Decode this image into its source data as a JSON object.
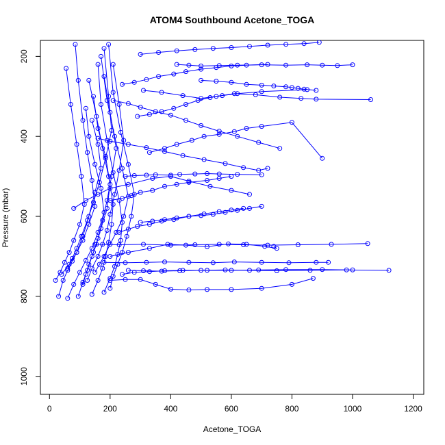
{
  "chart_data": {
    "type": "scatter",
    "title": "ATOM4 Southbound Acetone_TOGA",
    "xlabel": "Acetone_TOGA",
    "ylabel": "Pressure (mbar)",
    "xlim": [
      -30,
      1235
    ],
    "ylim": [
      1045,
      160
    ],
    "y_reversed": true,
    "x_ticks": [
      0,
      200,
      400,
      600,
      800,
      1000,
      1200
    ],
    "y_ticks": [
      200,
      400,
      600,
      800,
      1000
    ],
    "series_color": "#0000ff",
    "marker": "open-circle",
    "connected": true,
    "series": [
      {
        "profiles": [
          {
            "x": [
              30,
              45,
              60,
              75,
              90,
              110,
              130,
              150,
              170,
              160,
              140
            ],
            "y": [
              800,
              760,
              735,
              712,
              690,
              650,
              600,
              540,
              480,
              420,
              360
            ]
          },
          {
            "x": [
              60,
              80,
              100,
              120,
              140,
              160,
              180,
              170,
              150,
              130,
              120
            ],
            "y": [
              805,
              770,
              740,
              710,
              680,
              640,
              590,
              530,
              470,
              400,
              330
            ]
          },
          {
            "x": [
              95,
              110,
              125,
              140,
              155,
              170,
              190,
              200,
              185,
              160,
              145
            ],
            "y": [
              800,
              765,
              735,
              700,
              670,
              630,
              580,
              520,
              450,
              380,
              300
            ]
          },
          {
            "x": [
              140,
              160,
              175,
              185,
              195,
              205,
              210,
              195,
              175,
              155,
              130
            ],
            "y": [
              795,
              760,
              730,
              700,
              665,
              620,
              570,
              500,
              430,
              350,
              260
            ]
          },
          {
            "x": [
              180,
              200,
              215,
              225,
              235,
              240,
              230,
              210,
              190,
              170,
              160
            ],
            "y": [
              790,
              755,
              725,
              695,
              660,
              615,
              560,
              490,
              410,
              320,
              220
            ]
          },
          {
            "x": [
              20,
              35,
              50,
              65,
              80,
              100,
              115,
              105,
              90,
              70,
              55
            ],
            "y": [
              760,
              740,
              715,
              690,
              660,
              620,
              570,
              500,
              420,
              320,
              230
            ]
          },
          {
            "x": [
              110,
              120,
              130,
              145,
              160,
              175,
              190,
              205,
              220,
              200,
              180
            ],
            "y": [
              770,
              745,
              720,
              690,
              655,
              610,
              560,
              500,
              430,
              340,
              250
            ]
          },
          {
            "x": [
              150,
              165,
              180,
              200,
              220,
              245,
              260,
              240,
              215,
              190,
              170
            ],
            "y": [
              740,
              720,
              700,
              670,
              640,
              600,
              550,
              480,
              400,
              310,
              200
            ]
          },
          {
            "x": [
              60,
              75,
              90,
              105,
              125,
              145,
              165,
              185,
              205,
              195,
              180
            ],
            "y": [
              730,
              705,
              680,
              650,
              610,
              565,
              515,
              455,
              385,
              300,
              180
            ]
          },
          {
            "x": [
              200,
              210,
              225,
              240,
              255,
              270,
              280,
              260,
              235,
              210,
              195
            ],
            "y": [
              780,
              750,
              720,
              690,
              650,
              600,
              545,
              470,
              390,
              290,
              170
            ]
          },
          {
            "x": [
              40,
              65,
              90,
              110,
              130,
              150,
              140,
              125,
              110,
              95,
              85
            ],
            "y": [
              745,
              720,
              690,
              660,
              620,
              575,
              510,
              440,
              360,
              260,
              170
            ]
          },
          {
            "x": [
              125,
              140,
              160,
              175,
              190,
              200,
              215,
              230,
              245,
              230,
              210
            ],
            "y": [
              760,
              730,
              700,
              670,
              635,
              595,
              545,
              485,
              410,
              320,
              220
            ]
          },
          {
            "x": [
              240,
              280,
              330,
              380,
              440,
              520,
              600,
              690,
              780,
              900,
              1000
            ],
            "y": [
              745,
              740,
              738,
              736,
              735,
              735,
              735,
              734,
              733,
              733,
              734
            ]
          },
          {
            "x": [
              260,
              310,
              370,
              430,
              500,
              580,
              660,
              750,
              860,
              980,
              1120
            ],
            "y": [
              735,
              736,
              737,
              736,
              735,
              734,
              735,
              736,
              735,
              734,
              735
            ]
          },
          {
            "x": [
              150,
              230,
              310,
              400,
              480,
              560,
              640,
              720,
              820,
              930,
              1050
            ],
            "y": [
              670,
              671,
              670,
              672,
              671,
              670,
              671,
              672,
              671,
              670,
              668
            ]
          },
          {
            "x": [
              200,
              260,
              330,
              390,
              450,
              520,
              590,
              650,
              710,
              750,
              740
            ],
            "y": [
              700,
              690,
              680,
              670,
              672,
              676,
              669,
              670,
              675,
              680,
              675
            ]
          },
          {
            "x": [
              180,
              250,
              320,
              380,
              460,
              540,
              610,
              700,
              790,
              880,
              920
            ],
            "y": [
              715,
              716,
              715,
              714,
              715,
              716,
              714,
              715,
              716,
              715,
              715
            ]
          },
          {
            "x": [
              300,
              340,
              380,
              420,
              460,
              500,
              540,
              580,
              620,
              660,
              700
            ],
            "y": [
              615,
              612,
              608,
              604,
              600,
              598,
              595,
              590,
              585,
              580,
              575
            ]
          },
          {
            "x": [
              250,
              280,
              320,
              350,
              400,
              430,
              480,
              520,
              560,
              620,
              700
            ],
            "y": [
              500,
              498,
              497,
              496,
              497,
              495,
              494,
              493,
              494,
              495,
              496
            ]
          },
          {
            "x": [
              200,
              240,
              270,
              300,
              340,
              380,
              420,
              460,
              520,
              560,
              600
            ],
            "y": [
              560,
              555,
              548,
              540,
              535,
              525,
              520,
              515,
              510,
              505,
              500
            ]
          },
          {
            "x": [
              330,
              380,
              420,
              470,
              510,
              560,
              610,
              650,
              700,
              800,
              900
            ],
            "y": [
              440,
              430,
              420,
              410,
              400,
              395,
              388,
              380,
              375,
              365,
              455
            ]
          },
          {
            "x": [
              290,
              330,
              370,
              410,
              450,
              490,
              530,
              570,
              620,
              700,
              850
            ],
            "y": [
              350,
              345,
              338,
              330,
              320,
              310,
              303,
              298,
              293,
              288,
              283
            ]
          },
          {
            "x": [
              240,
              280,
              320,
              360,
              410,
              450,
              500,
              550,
              600,
              650,
              720
            ],
            "y": [
              270,
              265,
              258,
              250,
              244,
              238,
              232,
              228,
              224,
              222,
              220
            ]
          },
          {
            "x": [
              420,
              460,
              500,
              560,
              620,
              700,
              780,
              850,
              900,
              950,
              1000
            ],
            "y": [
              220,
              222,
              224,
              223,
              222,
              221,
              222,
              221,
              222,
              223,
              221
            ]
          },
          {
            "x": [
              300,
              360,
              420,
              480,
              540,
              600,
              660,
              720,
              780,
              840,
              890
            ],
            "y": [
              195,
              190,
              186,
              183,
              180,
              178,
              175,
              172,
              170,
              168,
              165
            ]
          },
          {
            "x": [
              210,
              260,
              300,
              350,
              400,
              450,
              500,
              560,
              620,
              690,
              760
            ],
            "y": [
              310,
              318,
              327,
              338,
              347,
              360,
              373,
              387,
              400,
              415,
              430
            ]
          },
          {
            "x": [
              160,
              200,
              260,
              320,
              380,
              440,
              510,
              580,
              640,
              690,
              720
            ],
            "y": [
              405,
              412,
              420,
              428,
              438,
              448,
              458,
              468,
              478,
              485,
              480
            ]
          },
          {
            "x": [
              230,
              260,
              290,
              330,
              370,
              410,
              460,
              510,
              560,
              600,
              640
            ],
            "y": [
              640,
              632,
              625,
              620,
              612,
              608,
              600,
              594,
              588,
              584,
              580
            ]
          },
          {
            "x": [
              200,
              250,
              300,
              350,
              400,
              460,
              520,
              600,
              700,
              800,
              870
            ],
            "y": [
              760,
              758,
              758,
              770,
              782,
              784,
              783,
              783,
              780,
              770,
              755
            ]
          },
          {
            "x": [
              80,
              120,
              160,
              200,
              260,
              340,
              400,
              460,
              530,
              600,
              660
            ],
            "y": [
              580,
              560,
              545,
              530,
              520,
              505,
              500,
              512,
              525,
              535,
              545
            ]
          },
          {
            "x": [
              310,
              370,
              440,
              500,
              550,
              610,
              680,
              760,
              830,
              880,
              1060
            ],
            "y": [
              285,
              290,
              298,
              305,
              300,
              293,
              296,
              302,
              305,
              307,
              308
            ]
          },
          {
            "x": [
              500,
              550,
              600,
              650,
              700,
              740,
              780,
              800,
              820,
              840,
              880
            ],
            "y": [
              260,
              262,
              265,
              270,
              272,
              274,
              276,
              278,
              280,
              282,
              285
            ]
          }
        ]
      }
    ]
  }
}
